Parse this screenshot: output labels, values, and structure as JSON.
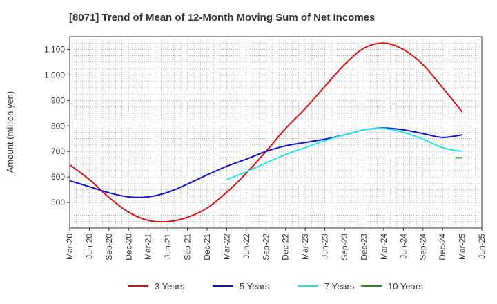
{
  "chart_data": {
    "type": "line",
    "title": "[8071]  Trend of Mean of 12-Month Moving Sum of Net Incomes",
    "xlabel": "",
    "ylabel": "Amount (million yen)",
    "ylim": [
      400,
      1150
    ],
    "xlim": [
      "Mar-20",
      "Jun-25"
    ],
    "yticks": [
      500,
      600,
      700,
      800,
      900,
      1000,
      1100
    ],
    "ytick_labels": [
      "500",
      "600",
      "700",
      "800",
      "900",
      "1,000",
      "1,100"
    ],
    "xtick_labels": [
      "Mar-20",
      "Jun-20",
      "Sep-20",
      "Dec-20",
      "Mar-21",
      "Jun-21",
      "Sep-21",
      "Dec-21",
      "Mar-22",
      "Jun-22",
      "Sep-22",
      "Dec-22",
      "Mar-23",
      "Jun-23",
      "Sep-23",
      "Dec-23",
      "Mar-24",
      "Jun-24",
      "Sep-24",
      "Dec-24",
      "Mar-25",
      "Jun-25"
    ],
    "grid": true,
    "legend_position": "bottom",
    "series": [
      {
        "name": "3 Years",
        "color": "#dd1111",
        "points": [
          [
            "Mar-20",
            648
          ],
          [
            "Jun-20",
            590
          ],
          [
            "Sep-20",
            520
          ],
          [
            "Dec-20",
            462
          ],
          [
            "Mar-21",
            430
          ],
          [
            "Jun-21",
            425
          ],
          [
            "Sep-21",
            442
          ],
          [
            "Dec-21",
            478
          ],
          [
            "Mar-22",
            540
          ],
          [
            "Jun-22",
            615
          ],
          [
            "Sep-22",
            700
          ],
          [
            "Dec-22",
            790
          ],
          [
            "Mar-23",
            868
          ],
          [
            "Jun-23",
            955
          ],
          [
            "Sep-23",
            1040
          ],
          [
            "Dec-23",
            1105
          ],
          [
            "Mar-24",
            1125
          ],
          [
            "Jun-24",
            1100
          ],
          [
            "Sep-24",
            1040
          ],
          [
            "Dec-24",
            950
          ],
          [
            "Mar-25",
            855
          ]
        ]
      },
      {
        "name": "5 Years",
        "color": "#1111cc",
        "points": [
          [
            "Mar-20",
            585
          ],
          [
            "Jun-20",
            562
          ],
          [
            "Sep-20",
            538
          ],
          [
            "Dec-20",
            522
          ],
          [
            "Mar-21",
            522
          ],
          [
            "Jun-21",
            540
          ],
          [
            "Sep-21",
            572
          ],
          [
            "Dec-21",
            608
          ],
          [
            "Mar-22",
            642
          ],
          [
            "Jun-22",
            670
          ],
          [
            "Sep-22",
            700
          ],
          [
            "Dec-22",
            722
          ],
          [
            "Mar-23",
            735
          ],
          [
            "Jun-23",
            748
          ],
          [
            "Sep-23",
            765
          ],
          [
            "Dec-23",
            785
          ],
          [
            "Mar-24",
            792
          ],
          [
            "Jun-24",
            785
          ],
          [
            "Sep-24",
            770
          ],
          [
            "Dec-24",
            755
          ],
          [
            "Mar-25",
            765
          ]
        ]
      },
      {
        "name": "7 Years",
        "color": "#22e5e5",
        "points": [
          [
            "Mar-22",
            590
          ],
          [
            "Jun-22",
            620
          ],
          [
            "Sep-22",
            655
          ],
          [
            "Dec-22",
            688
          ],
          [
            "Mar-23",
            715
          ],
          [
            "Jun-23",
            742
          ],
          [
            "Sep-23",
            765
          ],
          [
            "Dec-23",
            785
          ],
          [
            "Mar-24",
            790
          ],
          [
            "Jun-24",
            775
          ],
          [
            "Sep-24",
            748
          ],
          [
            "Dec-24",
            715
          ],
          [
            "Mar-25",
            700
          ]
        ]
      },
      {
        "name": "10 Years",
        "color": "#228822",
        "points": [
          [
            "Feb-25",
            675
          ],
          [
            "Mar-25",
            675
          ]
        ]
      }
    ]
  }
}
